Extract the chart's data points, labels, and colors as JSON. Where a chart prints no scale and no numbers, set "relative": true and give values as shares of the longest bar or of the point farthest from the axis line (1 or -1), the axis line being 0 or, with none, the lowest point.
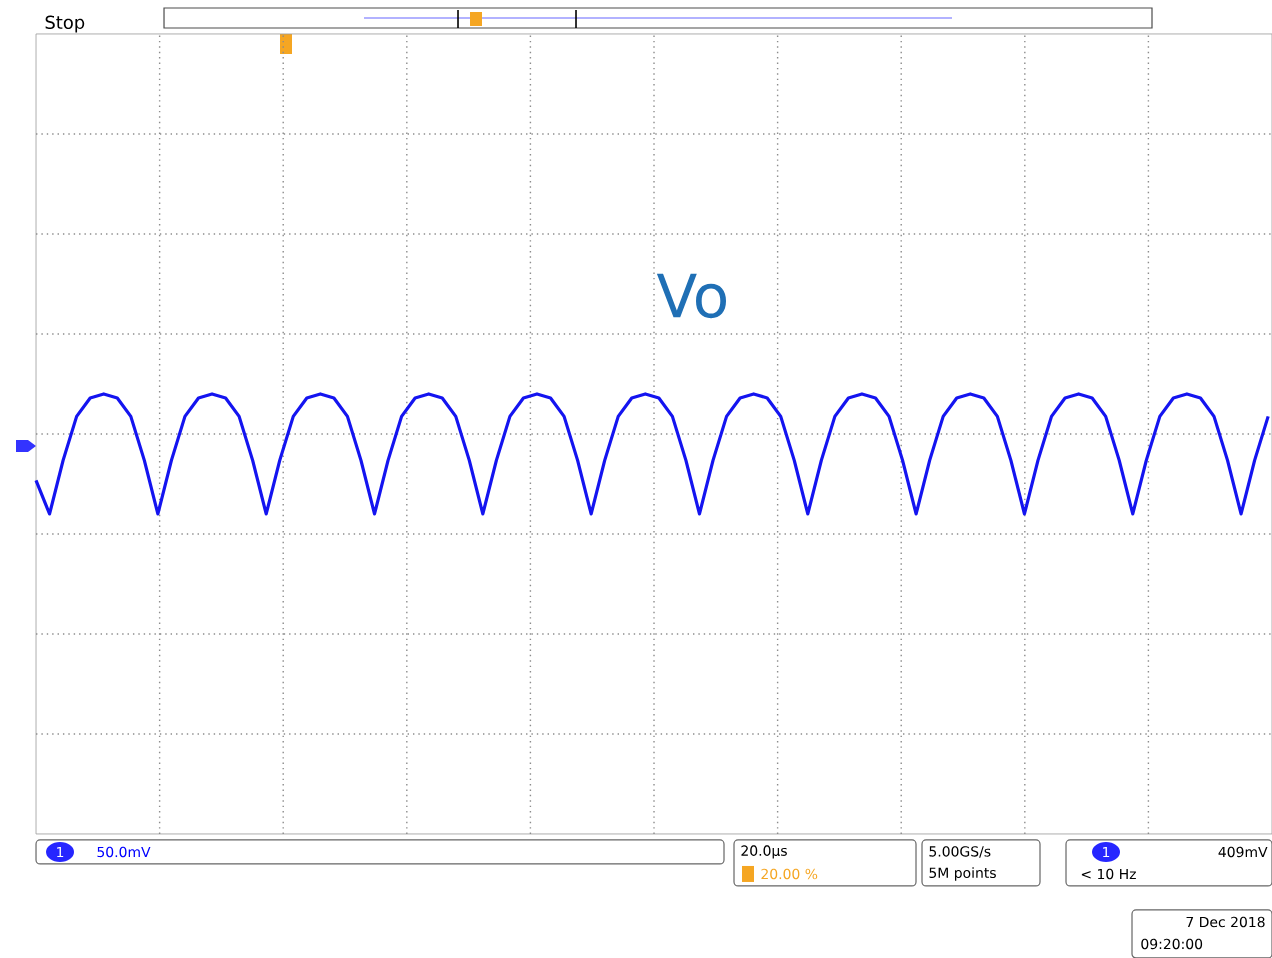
{
  "chart_data": {
    "type": "line",
    "relative": true,
    "grid": true,
    "tick_labels": false,
    "categories": [
      null,
      null,
      null,
      null,
      null,
      null,
      null,
      null,
      null,
      null,
      null,
      null,
      null,
      null,
      null,
      null,
      null,
      null,
      null,
      null,
      null,
      null,
      null,
      null,
      null,
      null,
      null,
      null,
      null,
      null,
      null,
      null,
      null,
      null,
      null,
      null,
      null,
      null,
      null,
      null,
      null,
      null,
      null,
      null,
      null,
      null,
      null,
      null,
      null,
      null,
      null,
      null,
      null,
      null,
      null,
      null,
      null,
      null,
      null,
      null,
      null,
      null,
      null,
      null,
      null,
      null,
      null,
      null,
      null,
      null,
      null,
      null,
      null,
      null,
      null,
      null,
      null,
      null,
      null,
      null,
      null,
      null,
      null,
      null,
      null,
      null,
      null,
      null,
      null,
      null,
      null,
      null
    ],
    "series": [
      {
        "color": "#1414f0",
        "values": [
          -0.58,
          -1,
          -0.33,
          0.22,
          0.45,
          0.5,
          0.45,
          0.22,
          -0.33,
          -1,
          -0.33,
          0.22,
          0.45,
          0.5,
          0.45,
          0.22,
          -0.33,
          -1,
          -0.33,
          0.22,
          0.45,
          0.5,
          0.45,
          0.22,
          -0.33,
          -1,
          -0.33,
          0.22,
          0.45,
          0.5,
          0.45,
          0.22,
          -0.33,
          -1,
          -0.33,
          0.22,
          0.45,
          0.5,
          0.45,
          0.22,
          -0.33,
          -1,
          -0.33,
          0.22,
          0.45,
          0.5,
          0.45,
          0.22,
          -0.33,
          -1,
          -0.33,
          0.22,
          0.45,
          0.5,
          0.45,
          0.22,
          -0.33,
          -1,
          -0.33,
          0.22,
          0.45,
          0.5,
          0.45,
          0.22,
          -0.33,
          -1,
          -0.33,
          0.22,
          0.45,
          0.5,
          0.45,
          0.22,
          -0.33,
          -1,
          -0.33,
          0.22,
          0.45,
          0.5,
          0.45,
          0.22,
          -0.33,
          -1,
          -0.33,
          0.22,
          0.45,
          0.5,
          0.45,
          0.22,
          -0.33,
          -1,
          -0.33,
          0.22
        ]
      }
    ],
    "annotations": [
      "Stop",
      "Vo",
      "1",
      "50.0mV",
      "20.0µs",
      "20.00 %",
      "5.00GS/s",
      "5M points",
      "1",
      "409mV",
      "< 10 Hz",
      "7 Dec 2018",
      "09:20:00"
    ]
  }
}
